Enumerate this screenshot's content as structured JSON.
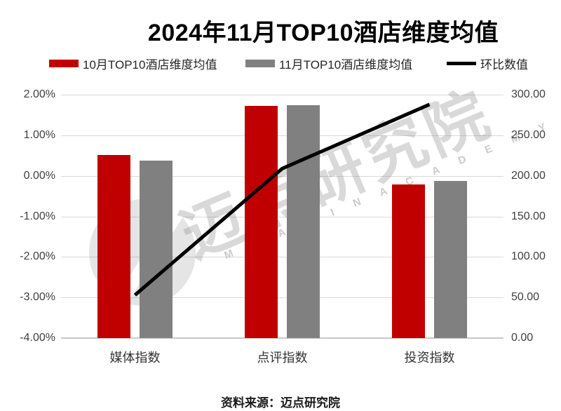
{
  "title": "2024年11月TOP10酒店维度均值",
  "legend": [
    {
      "label": "10月TOP10酒店维度均值",
      "type": "bar",
      "color": "#C00000"
    },
    {
      "label": "11月TOP10酒店维度均值",
      "type": "bar",
      "color": "#808080"
    },
    {
      "label": "环比数值",
      "type": "line",
      "color": "#000000"
    }
  ],
  "chart_data": {
    "type": "combo",
    "categories": [
      "媒体指数",
      "点评指数",
      "投资指数"
    ],
    "series": [
      {
        "name": "10月TOP10酒店维度均值",
        "type": "bar",
        "axis": "left",
        "unit": "%",
        "values": [
          0.52,
          1.72,
          -0.21
        ],
        "color": "#C00000"
      },
      {
        "name": "11月TOP10酒店维度均值",
        "type": "bar",
        "axis": "left",
        "unit": "%",
        "values": [
          0.37,
          1.74,
          -0.13
        ],
        "color": "#808080"
      },
      {
        "name": "环比数值",
        "type": "line",
        "axis": "right",
        "values": [
          53,
          209,
          288
        ],
        "color": "#000000"
      }
    ],
    "left_axis": {
      "min": -4,
      "max": 2,
      "ticks": [
        "2.00%",
        "1.00%",
        "0.00%",
        "-1.00%",
        "-2.00%",
        "-3.00%",
        "-4.00%"
      ]
    },
    "right_axis": {
      "min": 0,
      "max": 300,
      "ticks": [
        "300.00",
        "250.00",
        "200.00",
        "150.00",
        "100.00",
        "50.00",
        "0.00"
      ]
    },
    "grid": true,
    "legend_position": "top",
    "bars_baseline": "plot_bottom"
  },
  "watermark": {
    "cn": "迈点研究院",
    "en": "M E A D I N   A C A D E M Y"
  },
  "source": "资料来源：迈点研究院",
  "colors": {
    "bar_october": "#C00000",
    "bar_november": "#808080",
    "trend_line": "#000000",
    "gridline": "#D9D9D9",
    "axis_line": "#C8C8C8",
    "axis_text": "#404040",
    "title_text": "#000000",
    "legend_text": "#262626"
  }
}
